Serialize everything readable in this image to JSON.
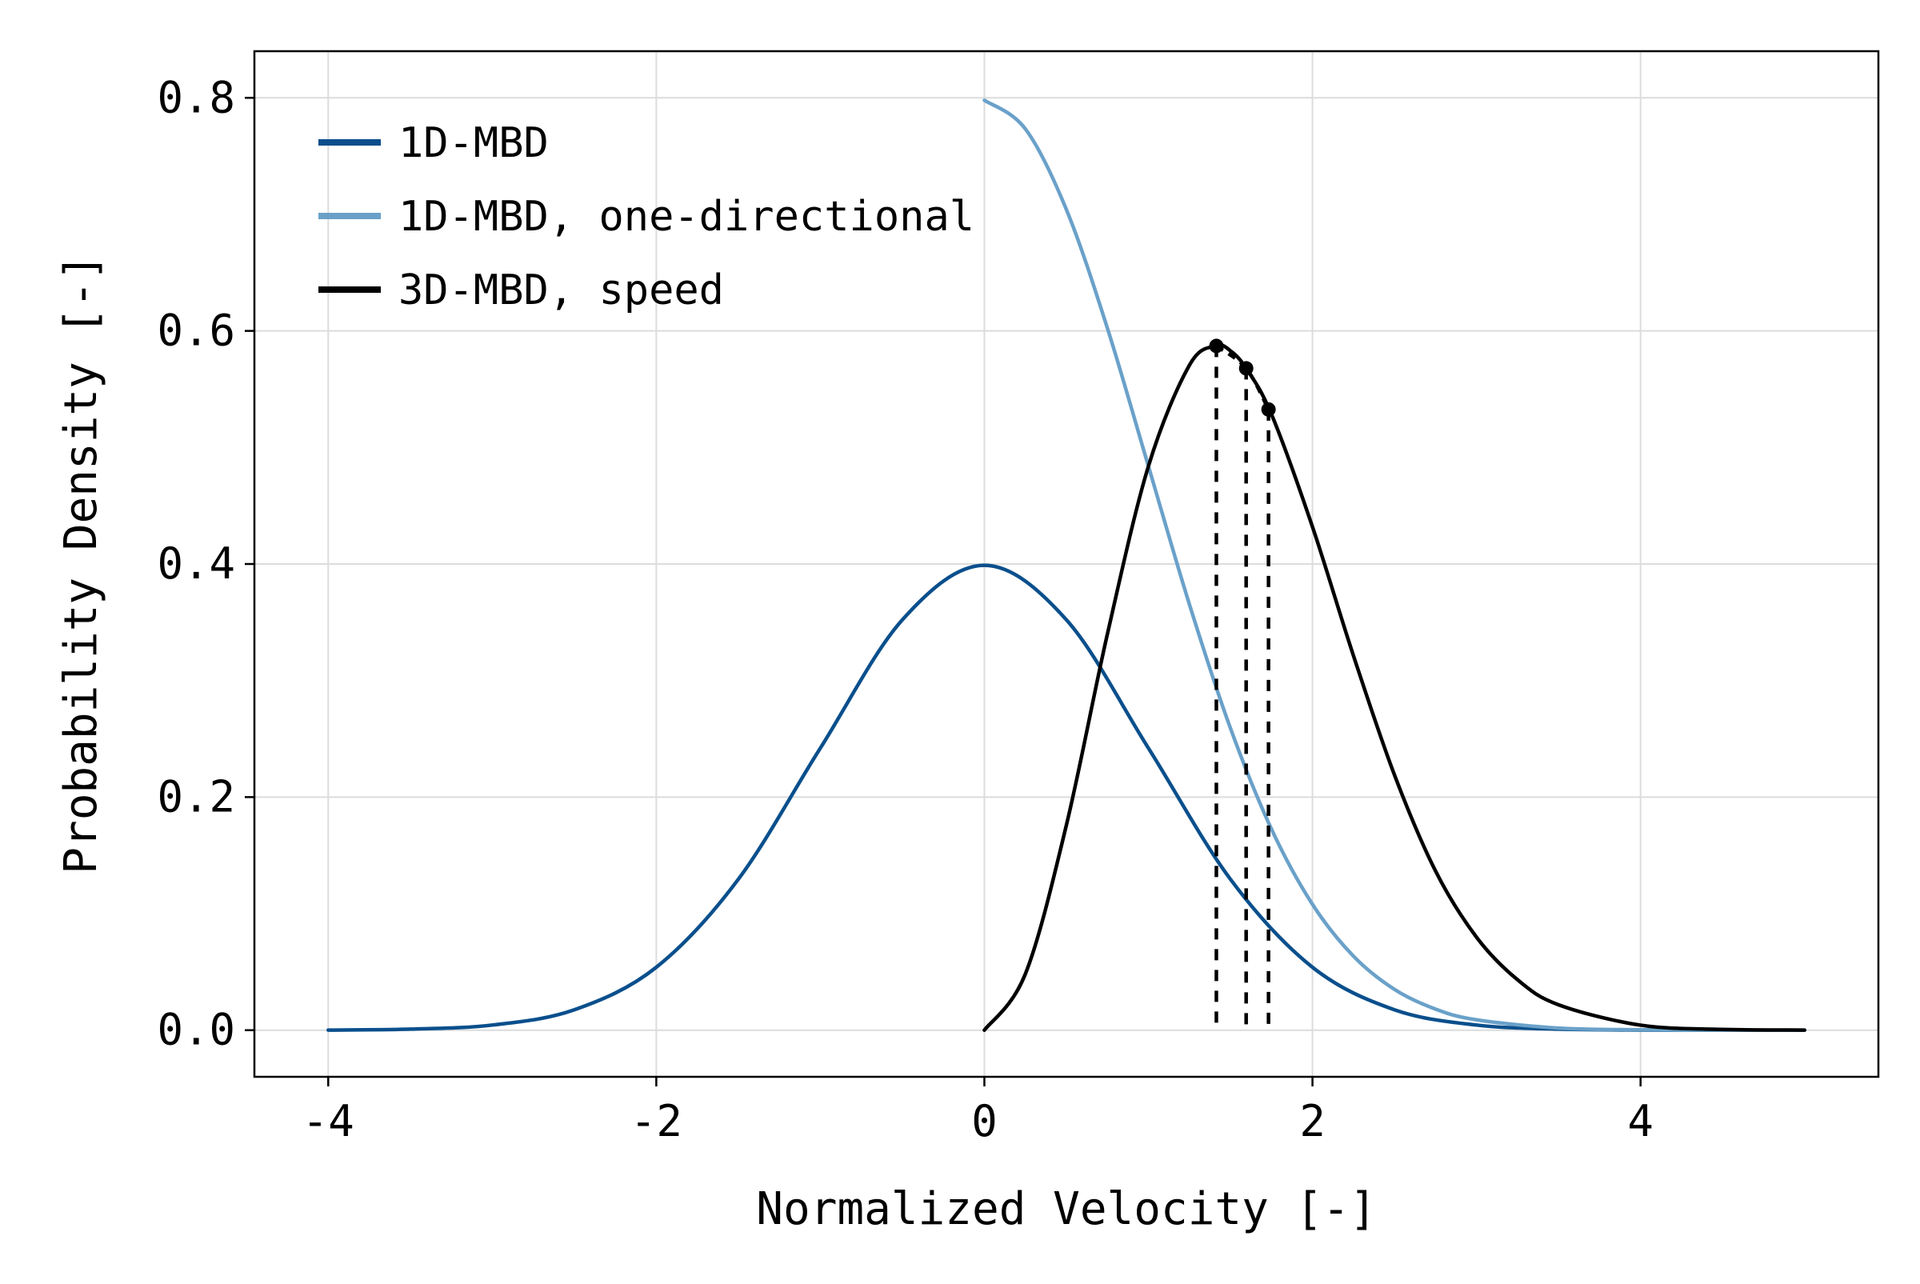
{
  "chart_data": {
    "type": "line",
    "title": "",
    "xlabel": "Normalized Velocity [-]",
    "ylabel": "Probability Density [-]",
    "xlim": [
      -4.45,
      5.45
    ],
    "ylim": [
      -0.04,
      0.84
    ],
    "xticks": [
      -4,
      -2,
      0,
      2,
      4
    ],
    "xtick_labels": [
      "-4",
      "-2",
      "0",
      "2",
      "4"
    ],
    "yticks": [
      0.0,
      0.2,
      0.4,
      0.6,
      0.8
    ],
    "ytick_labels": [
      "0.0",
      "0.2",
      "0.4",
      "0.6",
      "0.8"
    ],
    "grid": true,
    "legend_position": "top-left",
    "series": [
      {
        "name": "1D-MBD",
        "color": "#0a4f8c",
        "style": "solid",
        "x": [
          -4.0,
          -3.5,
          -3.0,
          -2.5,
          -2.0,
          -1.5,
          -1.0,
          -0.5,
          0.0,
          0.5,
          1.0,
          1.5,
          2.0,
          2.5,
          3.0,
          3.5,
          4.0,
          4.5,
          5.0
        ],
        "y": [
          0.0001,
          0.0009,
          0.0044,
          0.0175,
          0.054,
          0.1295,
          0.242,
          0.3521,
          0.3989,
          0.3521,
          0.242,
          0.1295,
          0.054,
          0.0175,
          0.0044,
          0.0009,
          0.0001,
          0.0,
          0.0
        ]
      },
      {
        "name": "1D-MBD, one-directional",
        "color": "#6aa1c9",
        "style": "solid",
        "x": [
          0.0,
          0.25,
          0.5,
          0.75,
          1.0,
          1.25,
          1.5,
          1.75,
          2.0,
          2.25,
          2.5,
          2.75,
          3.0,
          3.5,
          4.0,
          4.5,
          5.0
        ],
        "y": [
          0.7979,
          0.7733,
          0.7041,
          0.6023,
          0.4839,
          0.3653,
          0.2591,
          0.1726,
          0.108,
          0.0635,
          0.035,
          0.0181,
          0.0089,
          0.0018,
          0.0003,
          0.0,
          0.0
        ]
      },
      {
        "name": "3D-MBD, speed",
        "color": "#000000",
        "style": "solid",
        "x": [
          0.0,
          0.25,
          0.5,
          0.75,
          1.0,
          1.25,
          1.4142,
          1.5,
          1.5958,
          1.75,
          2.0,
          2.25,
          2.5,
          2.75,
          3.0,
          3.25,
          3.5,
          4.0,
          4.5,
          5.0
        ],
        "y": [
          0.0,
          0.0483,
          0.176,
          0.3399,
          0.4839,
          0.5706,
          0.5871,
          0.5829,
          0.5679,
          0.5285,
          0.4319,
          0.3213,
          0.219,
          0.1367,
          0.0798,
          0.0433,
          0.0218,
          0.0043,
          0.0007,
          0.0001
        ]
      }
    ],
    "markers": [
      {
        "x": 1.4142,
        "y": 0.5871
      },
      {
        "x": 1.5958,
        "y": 0.5679
      },
      {
        "x": 1.7321,
        "y": 0.5326
      }
    ],
    "colors": {
      "frame": "#000000",
      "grid": "#dcdcdc",
      "background": "#ffffff"
    }
  }
}
